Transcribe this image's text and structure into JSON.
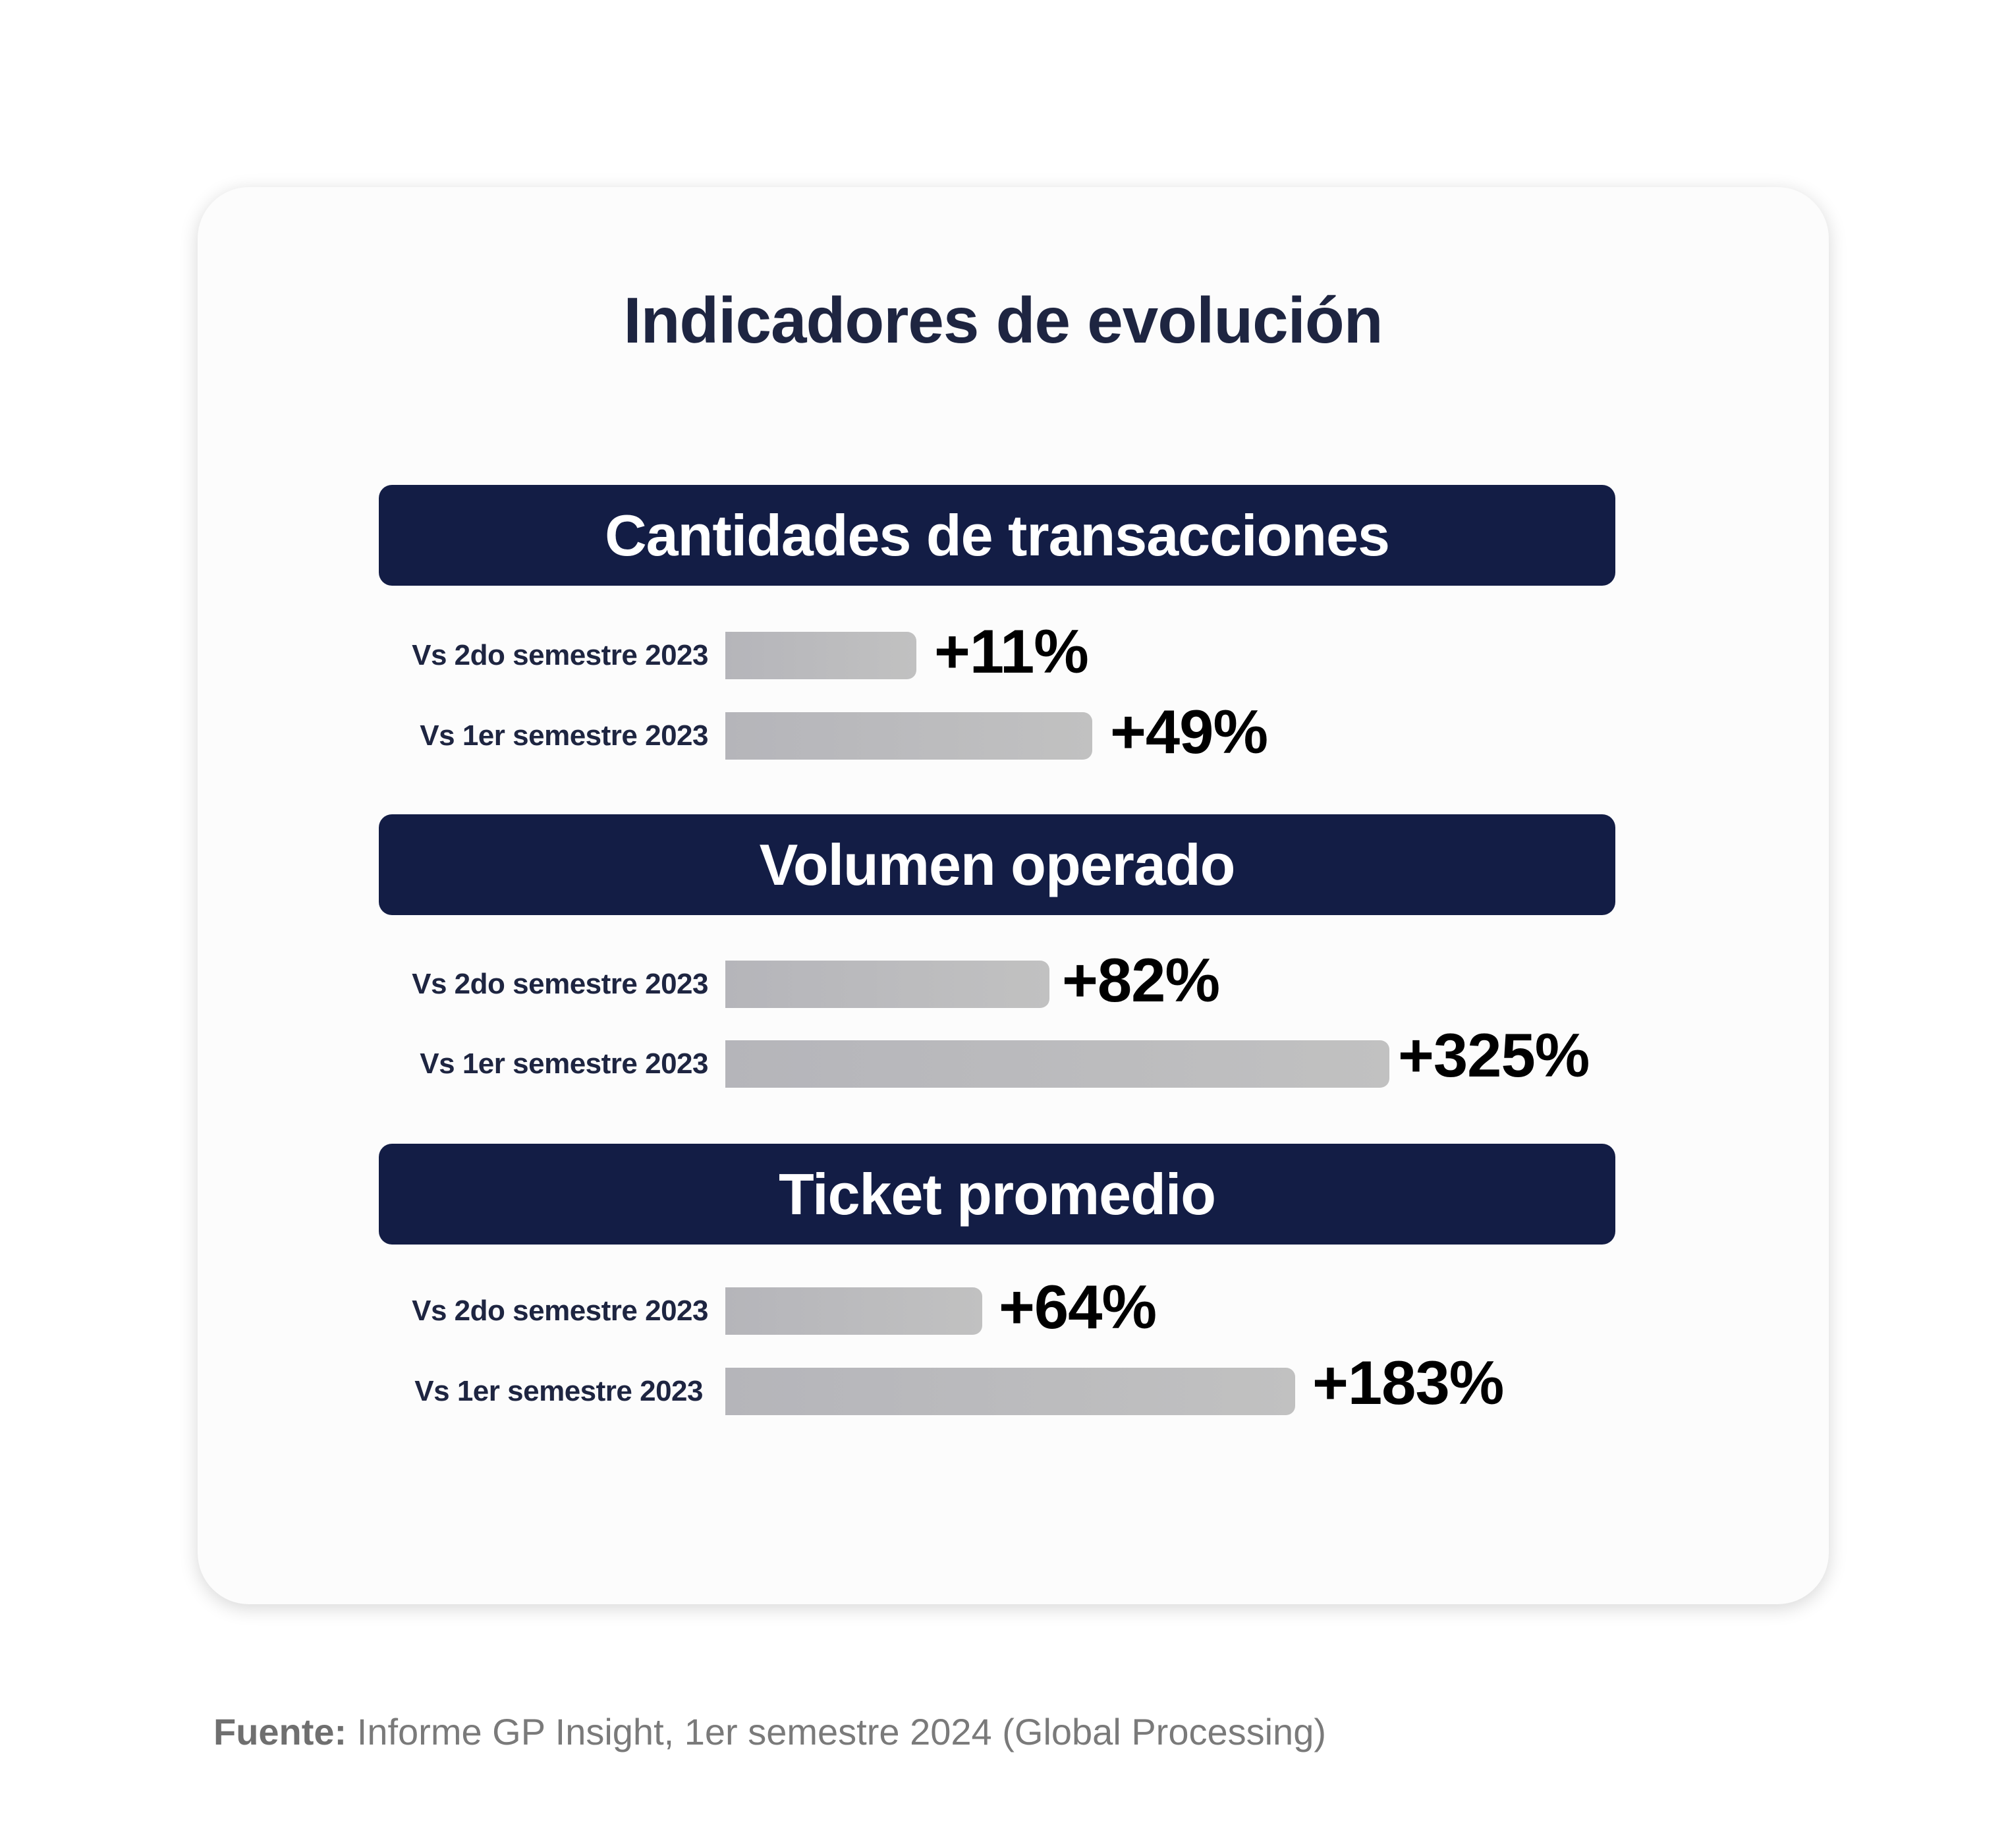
{
  "chart_data": {
    "type": "bar",
    "title": "Indicadores de evolución",
    "groups": [
      {
        "name": "Cantidades de transacciones",
        "categories": [
          "Vs 2do semestre 2023",
          "Vs 1er semestre 2023"
        ],
        "values": [
          11,
          49
        ],
        "labels": [
          "+11%",
          "+49%"
        ]
      },
      {
        "name": "Volumen operado",
        "categories": [
          "Vs 2do semestre 2023",
          "Vs 1er semestre 2023"
        ],
        "values": [
          82,
          325
        ],
        "labels": [
          "+82%",
          "+325%"
        ]
      },
      {
        "name": "Ticket promedio",
        "categories": [
          "Vs 2do semestre 2023",
          "Vs 1er semestre 2023"
        ],
        "values": [
          64,
          183
        ],
        "labels": [
          "+64%",
          "+183%"
        ]
      }
    ],
    "unit": "%"
  },
  "footer": {
    "label": "Fuente:",
    "text": " Informe GP Insight, 1er semestre 2024 (Global Processing)"
  },
  "colors": {
    "header": "#131d45",
    "text": "#1e2541",
    "bar": "#b8b8bc"
  }
}
